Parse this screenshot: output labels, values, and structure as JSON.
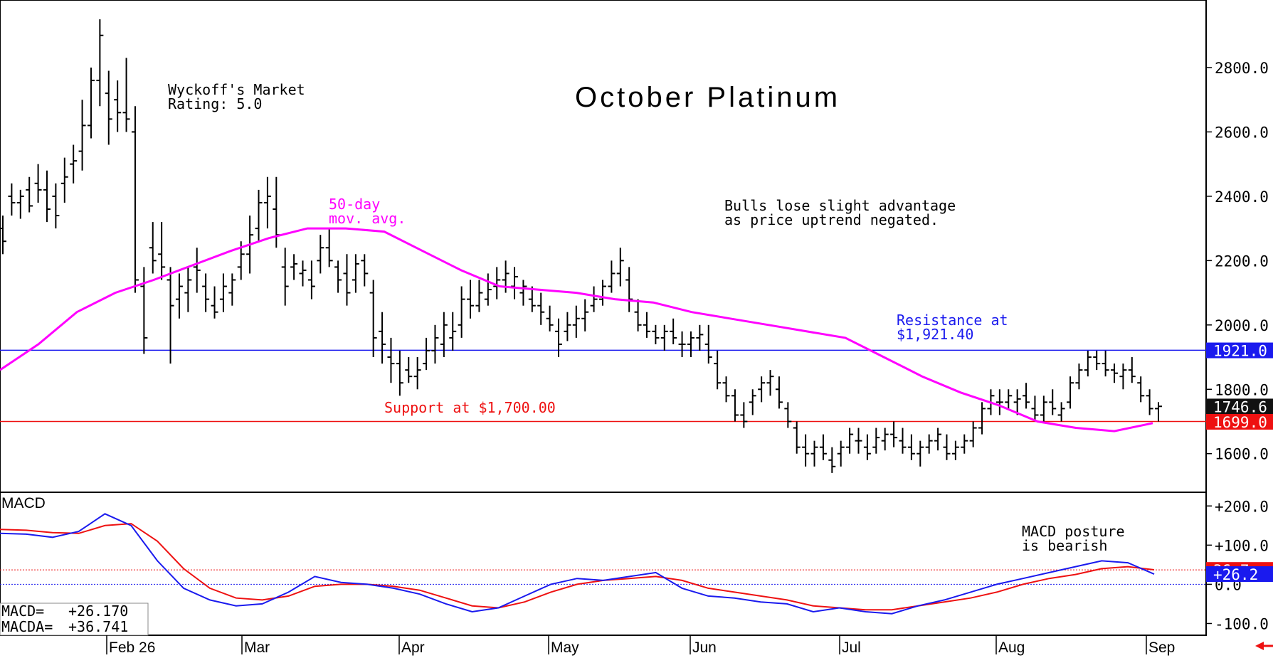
{
  "chart_data": [
    {
      "type": "ohlc",
      "title": "October Platinum",
      "rating_text": [
        "Wyckoff's Market",
        "Rating: 5.0"
      ],
      "comment": [
        "Bulls lose slight advantage",
        "as price uptrend negated."
      ],
      "ma_label": [
        "50-day",
        "mov. avg."
      ],
      "resistance_label": [
        "Resistance at",
        "$1,921.40"
      ],
      "support_label": "Support at $1,700.00",
      "resistance_value": 1921.4,
      "support_value": 1700.0,
      "ylim": [
        1480,
        3010
      ],
      "y_ticks": [
        "1600.0",
        "1800.0",
        "2000.0",
        "2200.0",
        "2400.0",
        "2600.0",
        "2800.0"
      ],
      "x_labels": [
        "Feb 26",
        "Mar",
        "Apr",
        "May",
        "Jun",
        "Jul",
        "Aug",
        "Sep"
      ],
      "price_tags": [
        {
          "label": "1921.0",
          "value": 1921.0,
          "color": "#1a1aee",
          "text_color": "#ffffff"
        },
        {
          "label": "1746.6",
          "value": 1746.6,
          "color": "#111111",
          "text_color": "#ffffff"
        },
        {
          "label": "1699.0",
          "value": 1699.0,
          "color": "#ee1111",
          "text_color": "#ffffff"
        }
      ],
      "colors": {
        "bars": "#000000",
        "ma": "#ff00ff",
        "resistance": "#1a1aee",
        "support": "#ee1111"
      },
      "ma_50day": [
        1860,
        1940,
        2040,
        2100,
        2140,
        2185,
        2230,
        2270,
        2300,
        2300,
        2290,
        2230,
        2170,
        2120,
        2110,
        2100,
        2080,
        2070,
        2040,
        2020,
        2000,
        1980,
        1960,
        1900,
        1840,
        1790,
        1750,
        1700,
        1680,
        1670,
        1695
      ],
      "bars": [
        [
          2300,
          2340,
          2220,
          2260
        ],
        [
          2400,
          2440,
          2340,
          2380
        ],
        [
          2380,
          2420,
          2330,
          2400
        ],
        [
          2420,
          2460,
          2350,
          2370
        ],
        [
          2440,
          2500,
          2380,
          2420
        ],
        [
          2420,
          2480,
          2320,
          2360
        ],
        [
          2400,
          2440,
          2300,
          2340
        ],
        [
          2440,
          2520,
          2380,
          2460
        ],
        [
          2500,
          2560,
          2440,
          2510
        ],
        [
          2540,
          2700,
          2480,
          2620
        ],
        [
          2620,
          2800,
          2580,
          2760
        ],
        [
          2760,
          2950,
          2680,
          2900
        ],
        [
          2720,
          2790,
          2560,
          2640
        ],
        [
          2700,
          2760,
          2600,
          2660
        ],
        [
          2660,
          2830,
          2600,
          2640
        ],
        [
          2600,
          2680,
          2100,
          2140
        ],
        [
          2120,
          2180,
          1910,
          1960
        ],
        [
          2240,
          2320,
          2160,
          2200
        ],
        [
          2220,
          2320,
          2140,
          2180
        ],
        [
          2140,
          2180,
          1880,
          2060
        ],
        [
          2080,
          2160,
          2020,
          2120
        ],
        [
          2100,
          2180,
          2040,
          2140
        ],
        [
          2180,
          2240,
          2100,
          2170
        ],
        [
          2120,
          2160,
          2040,
          2080
        ],
        [
          2060,
          2120,
          2020,
          2040
        ],
        [
          2080,
          2160,
          2040,
          2120
        ],
        [
          2100,
          2160,
          2060,
          2140
        ],
        [
          2180,
          2260,
          2140,
          2220
        ],
        [
          2220,
          2340,
          2160,
          2280
        ],
        [
          2300,
          2420,
          2260,
          2380
        ],
        [
          2380,
          2460,
          2300,
          2400
        ],
        [
          2360,
          2460,
          2240,
          2280
        ],
        [
          2180,
          2240,
          2060,
          2120
        ],
        [
          2180,
          2220,
          2140,
          2190
        ],
        [
          2160,
          2200,
          2120,
          2170
        ],
        [
          2140,
          2200,
          2080,
          2120
        ],
        [
          2200,
          2280,
          2160,
          2240
        ],
        [
          2240,
          2300,
          2180,
          2200
        ],
        [
          2180,
          2200,
          2100,
          2140
        ],
        [
          2160,
          2220,
          2060,
          2100
        ],
        [
          2140,
          2220,
          2100,
          2190
        ],
        [
          2200,
          2220,
          2120,
          2160
        ],
        [
          2100,
          2140,
          1900,
          1960
        ],
        [
          1980,
          2040,
          1880,
          1940
        ],
        [
          1900,
          1960,
          1820,
          1880
        ],
        [
          1880,
          1920,
          1780,
          1820
        ],
        [
          1860,
          1900,
          1820,
          1840
        ],
        [
          1840,
          1900,
          1800,
          1860
        ],
        [
          1880,
          1960,
          1860,
          1920
        ],
        [
          1920,
          2000,
          1880,
          1960
        ],
        [
          1940,
          2040,
          1900,
          2000
        ],
        [
          1960,
          2040,
          1920,
          1980
        ],
        [
          2000,
          2120,
          1960,
          2080
        ],
        [
          2080,
          2140,
          2020,
          2060
        ],
        [
          2060,
          2140,
          2040,
          2100
        ],
        [
          2080,
          2160,
          2060,
          2110
        ],
        [
          2120,
          2180,
          2080,
          2140
        ],
        [
          2140,
          2200,
          2100,
          2160
        ],
        [
          2120,
          2180,
          2080,
          2150
        ],
        [
          2100,
          2140,
          2060,
          2120
        ],
        [
          2080,
          2120,
          2040,
          2060
        ],
        [
          2060,
          2100,
          2000,
          2040
        ],
        [
          2020,
          2060,
          1980,
          2000
        ],
        [
          1980,
          2020,
          1900,
          1940
        ],
        [
          1980,
          2040,
          1950,
          2000
        ],
        [
          2000,
          2060,
          1960,
          2020
        ],
        [
          2020,
          2080,
          1980,
          2040
        ],
        [
          2060,
          2120,
          2040,
          2080
        ],
        [
          2080,
          2140,
          2060,
          2120
        ],
        [
          2120,
          2200,
          2100,
          2160
        ],
        [
          2160,
          2240,
          2120,
          2200
        ],
        [
          2140,
          2180,
          2040,
          2080
        ],
        [
          2040,
          2080,
          1980,
          2000
        ],
        [
          2000,
          2040,
          1960,
          1980
        ],
        [
          1980,
          2000,
          1940,
          1960
        ],
        [
          1960,
          2000,
          1920,
          1980
        ],
        [
          1980,
          2020,
          1940,
          1960
        ],
        [
          1940,
          1980,
          1900,
          1940
        ],
        [
          1940,
          1980,
          1900,
          1960
        ],
        [
          1960,
          2000,
          1920,
          1970
        ],
        [
          1940,
          2000,
          1880,
          1900
        ],
        [
          1880,
          1920,
          1800,
          1820
        ],
        [
          1820,
          1840,
          1760,
          1780
        ],
        [
          1780,
          1800,
          1700,
          1720
        ],
        [
          1720,
          1760,
          1680,
          1700
        ],
        [
          1760,
          1800,
          1720,
          1780
        ],
        [
          1800,
          1840,
          1760,
          1820
        ],
        [
          1820,
          1860,
          1780,
          1840
        ],
        [
          1800,
          1840,
          1740,
          1760
        ],
        [
          1740,
          1760,
          1680,
          1700
        ],
        [
          1680,
          1700,
          1600,
          1620
        ],
        [
          1620,
          1660,
          1560,
          1600
        ],
        [
          1600,
          1640,
          1560,
          1620
        ],
        [
          1620,
          1660,
          1580,
          1600
        ],
        [
          1580,
          1620,
          1540,
          1560
        ],
        [
          1600,
          1640,
          1560,
          1620
        ],
        [
          1620,
          1680,
          1600,
          1660
        ],
        [
          1640,
          1680,
          1600,
          1640
        ],
        [
          1620,
          1660,
          1580,
          1600
        ],
        [
          1620,
          1680,
          1600,
          1650
        ],
        [
          1640,
          1680,
          1610,
          1660
        ],
        [
          1660,
          1700,
          1620,
          1650
        ],
        [
          1640,
          1680,
          1600,
          1620
        ],
        [
          1620,
          1660,
          1580,
          1600
        ],
        [
          1600,
          1640,
          1560,
          1620
        ],
        [
          1620,
          1660,
          1600,
          1640
        ],
        [
          1640,
          1680,
          1610,
          1660
        ],
        [
          1620,
          1660,
          1580,
          1600
        ],
        [
          1600,
          1640,
          1580,
          1620
        ],
        [
          1620,
          1660,
          1600,
          1640
        ],
        [
          1640,
          1700,
          1620,
          1680
        ],
        [
          1680,
          1760,
          1660,
          1740
        ],
        [
          1740,
          1800,
          1720,
          1780
        ],
        [
          1760,
          1800,
          1720,
          1760
        ],
        [
          1760,
          1800,
          1740,
          1780
        ],
        [
          1760,
          1800,
          1720,
          1770
        ],
        [
          1780,
          1820,
          1740,
          1760
        ],
        [
          1740,
          1780,
          1700,
          1720
        ],
        [
          1720,
          1780,
          1700,
          1760
        ],
        [
          1760,
          1800,
          1720,
          1740
        ],
        [
          1720,
          1760,
          1700,
          1740
        ],
        [
          1760,
          1840,
          1740,
          1820
        ],
        [
          1820,
          1880,
          1800,
          1860
        ],
        [
          1860,
          1920,
          1840,
          1900
        ],
        [
          1900,
          1920,
          1860,
          1880
        ],
        [
          1880,
          1920,
          1840,
          1860
        ],
        [
          1860,
          1880,
          1820,
          1850
        ],
        [
          1840,
          1880,
          1800,
          1860
        ],
        [
          1860,
          1900,
          1820,
          1840
        ],
        [
          1820,
          1840,
          1760,
          1780
        ],
        [
          1780,
          1800,
          1720,
          1740
        ],
        [
          1740,
          1760,
          1700,
          1747
        ]
      ]
    },
    {
      "type": "line",
      "label": "MACD",
      "readout": [
        {
          "name": "MACD=",
          "value": "+26.170"
        },
        {
          "name": "MACDA=",
          "value": "+36.741"
        }
      ],
      "annotation": [
        "MACD posture",
        "is bearish"
      ],
      "ylim": [
        -130,
        235
      ],
      "y_ticks": [
        "+200.0",
        "+100.0",
        "0.0",
        "-100.0"
      ],
      "reference_value": 36.741,
      "value_tags": [
        {
          "label": "36.7",
          "value": 36.741,
          "color": "#ee1111",
          "text_color": "#ffffff"
        },
        {
          "label": "+26.2",
          "value": 26.17,
          "color": "#1a1aee",
          "text_color": "#ffffff"
        }
      ],
      "series": [
        {
          "name": "MACD",
          "color": "#1a1aee",
          "values": [
            130,
            128,
            120,
            135,
            180,
            150,
            60,
            -10,
            -40,
            -55,
            -50,
            -20,
            20,
            5,
            0,
            -10,
            -25,
            -50,
            -70,
            -60,
            -30,
            0,
            15,
            10,
            20,
            30,
            -10,
            -30,
            -35,
            -45,
            -50,
            -70,
            -60,
            -70,
            -75,
            -55,
            -40,
            -20,
            0,
            15,
            30,
            45,
            60,
            55,
            26
          ]
        },
        {
          "name": "MACDA",
          "color": "#ee1111",
          "values": [
            140,
            138,
            132,
            130,
            150,
            155,
            110,
            40,
            -10,
            -35,
            -40,
            -30,
            -5,
            0,
            0,
            -5,
            -15,
            -35,
            -55,
            -60,
            -45,
            -20,
            0,
            10,
            15,
            20,
            10,
            -10,
            -20,
            -30,
            -40,
            -55,
            -60,
            -65,
            -65,
            -55,
            -45,
            -35,
            -20,
            0,
            15,
            25,
            40,
            45,
            37
          ]
        }
      ]
    }
  ]
}
